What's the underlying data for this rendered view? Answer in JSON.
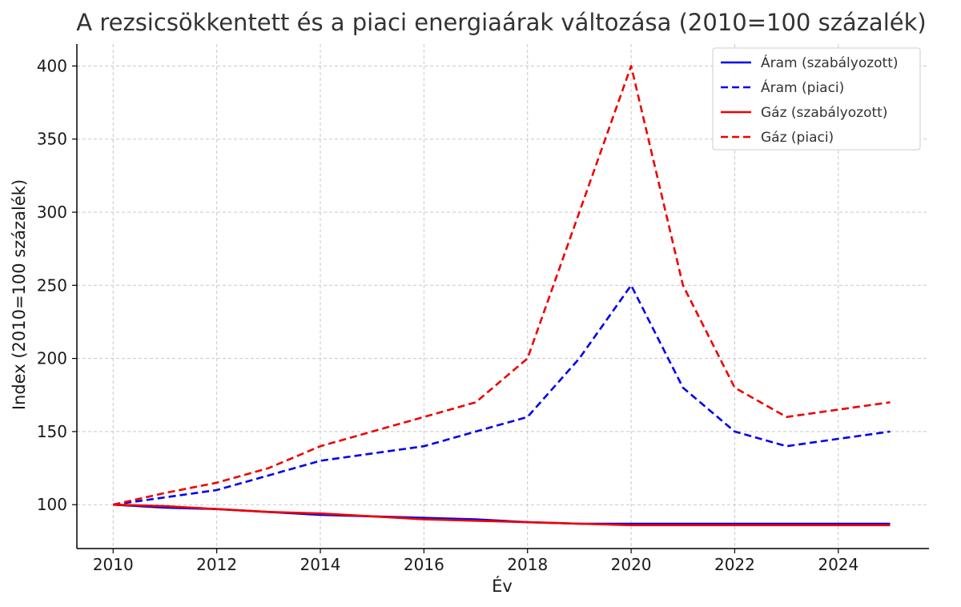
{
  "chart_data": {
    "type": "line",
    "title": "A rezsicsökkentett és a piaci energiaárak változása (2010=100 százalék)",
    "xlabel": "Év",
    "ylabel": "Index (2010=100 százalék)",
    "xlim": [
      2009.3,
      2025.75
    ],
    "ylim": [
      70,
      415
    ],
    "xticks": [
      2010,
      2012,
      2014,
      2016,
      2018,
      2020,
      2022,
      2024
    ],
    "yticks": [
      100,
      150,
      200,
      250,
      300,
      350,
      400
    ],
    "grid": true,
    "legend_position": "top-right",
    "x": [
      2010,
      2011,
      2012,
      2013,
      2014,
      2015,
      2016,
      2017,
      2018,
      2019,
      2020,
      2021,
      2022,
      2023,
      2024,
      2025
    ],
    "series": [
      {
        "name": "Áram (szabályozott)",
        "color": "#0000ee",
        "dash": "solid",
        "values": [
          100,
          98,
          97,
          95,
          93,
          92,
          91,
          90,
          88,
          87,
          87,
          87,
          87,
          87,
          87,
          87
        ]
      },
      {
        "name": "Áram (piaci)",
        "color": "#0000ee",
        "dash": "dashed",
        "values": [
          100,
          105,
          110,
          120,
          130,
          135,
          140,
          150,
          160,
          200,
          250,
          180,
          150,
          140,
          145,
          150
        ]
      },
      {
        "name": "Gáz (szabályozott)",
        "color": "#ee0000",
        "dash": "solid",
        "values": [
          100,
          99,
          97,
          95,
          94,
          92,
          90,
          89,
          88,
          87,
          86,
          86,
          86,
          86,
          86,
          86
        ]
      },
      {
        "name": "Gáz (piaci)",
        "color": "#ee0000",
        "dash": "dashed",
        "values": [
          100,
          108,
          115,
          125,
          140,
          150,
          160,
          170,
          200,
          300,
          400,
          250,
          180,
          160,
          165,
          170
        ]
      }
    ]
  }
}
